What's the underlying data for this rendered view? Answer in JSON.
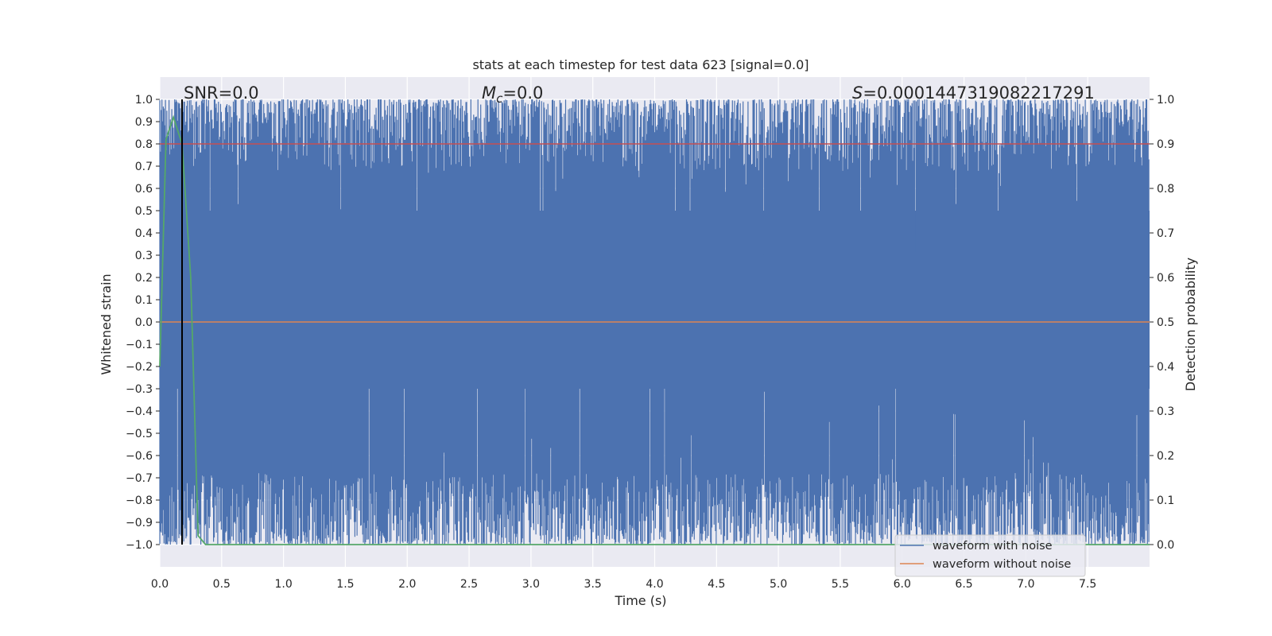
{
  "chart_data": {
    "type": "line",
    "title": "stats at each timestep for test data 623 [signal=0.0]",
    "xlabel": "Time (s)",
    "ylabel_left": "Whitened strain",
    "ylabel_right": "Detection probability",
    "xlim": [
      0.0,
      8.0
    ],
    "ylim_left": [
      -1.1,
      1.1
    ],
    "ylim_right": [
      -0.05,
      1.05
    ],
    "x_ticks": [
      "0.0",
      "0.5",
      "1.0",
      "1.5",
      "2.0",
      "2.5",
      "3.0",
      "3.5",
      "4.0",
      "4.5",
      "5.0",
      "5.5",
      "6.0",
      "6.5",
      "7.0",
      "7.5"
    ],
    "y_ticks_left": [
      "1.0",
      "0.9",
      "0.8",
      "0.7",
      "0.6",
      "0.5",
      "0.4",
      "0.3",
      "0.2",
      "0.1",
      "0.0",
      "−0.1",
      "−0.2",
      "−0.3",
      "−0.4",
      "−0.5",
      "−0.6",
      "−0.7",
      "−0.8",
      "−0.9",
      "−1.0"
    ],
    "y_ticks_right": [
      "1.0",
      "0.9",
      "0.8",
      "0.7",
      "0.6",
      "0.5",
      "0.4",
      "0.3",
      "0.2",
      "0.1",
      "0.0"
    ],
    "grid": true,
    "legend_placement": "bottom-right",
    "annotations": {
      "snr": "SNR=0.0",
      "mc_symbol": "M",
      "mc_sub": "c",
      "mc_value": "=0.0",
      "s_symbol": "S",
      "s_value": "=0.0001447319082217291"
    },
    "series": [
      {
        "name": "waveform with noise",
        "color": "#4c72b0",
        "x_range": [
          0.0,
          8.0
        ],
        "y_range": [
          -1.0,
          1.0
        ]
      },
      {
        "name": "waveform without noise",
        "color": "#dd8452",
        "x": [
          0.0,
          8.0
        ],
        "y": [
          0.0,
          0.0
        ]
      },
      {
        "color": "#55a868",
        "x": [
          0.0,
          0.05,
          0.11,
          0.18,
          0.25,
          0.31,
          0.37,
          8.0
        ],
        "y": [
          0.4,
          0.91,
          0.96,
          0.9,
          0.6,
          0.02,
          0.0,
          0.0
        ]
      }
    ],
    "threshold_line": {
      "color": "#c44e52",
      "y_left": 0.8
    },
    "event_marker": {
      "color": "#000000",
      "x": 0.18
    }
  }
}
